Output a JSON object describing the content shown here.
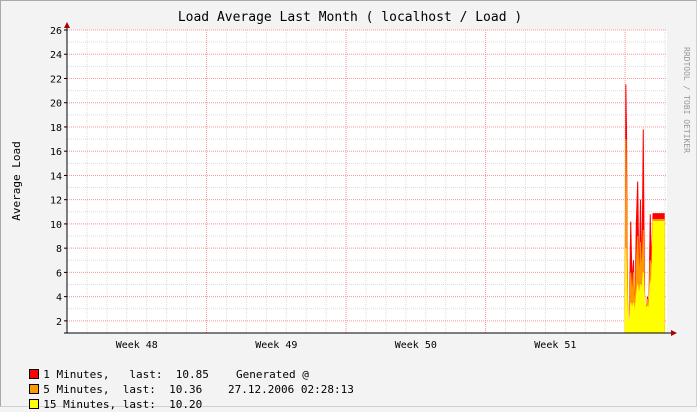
{
  "chart_data": {
    "type": "area",
    "title": "Load Average Last Month ( localhost / Load )",
    "ylabel": "Average Load",
    "watermark": "RRDTOOL / TOBI OETIKER",
    "ylim": [
      1,
      26
    ],
    "yticks": [
      2,
      4,
      6,
      8,
      10,
      12,
      14,
      16,
      18,
      20,
      22,
      24,
      26
    ],
    "xrange": [
      0,
      4.3
    ],
    "xticks": [
      {
        "pos": 0.5,
        "label": "Week 48"
      },
      {
        "pos": 1.5,
        "label": "Week 49"
      },
      {
        "pos": 2.5,
        "label": "Week 50"
      },
      {
        "pos": 3.5,
        "label": "Week 51"
      }
    ],
    "week_boundaries": [
      1,
      2,
      3,
      4
    ],
    "grid": true,
    "colors": {
      "one_minute": "#ff0000",
      "five_minutes": "#ff9900",
      "fifteen_minutes": "#ffff00",
      "axis": "#000000",
      "major_grid": "#ff9999",
      "minor_grid": "#dddddd",
      "plot_bg": "#ffffff"
    },
    "series": [
      {
        "name": "1 Minutes",
        "color": "#ff0000",
        "x": [
          4.0,
          4.005,
          4.01,
          4.015,
          4.02,
          4.03,
          4.04,
          4.05,
          4.06,
          4.07,
          4.08,
          4.09,
          4.1,
          4.11,
          4.12,
          4.13,
          4.135,
          4.14,
          4.15,
          4.16,
          4.17,
          4.18,
          4.19,
          4.2,
          4.21,
          4.22,
          4.23,
          4.24,
          4.25,
          4.26,
          4.27,
          4.28
        ],
        "values": [
          1.0,
          21.5,
          17.5,
          6.0,
          1.5,
          1.2,
          10.2,
          5.0,
          7.0,
          2.0,
          10.0,
          13.5,
          4.5,
          12.0,
          5.0,
          17.8,
          9.0,
          3.0,
          2.5,
          4.0,
          2.8,
          10.8,
          6.0,
          10.85,
          10.85,
          10.85,
          10.85,
          10.85,
          10.85,
          10.85,
          10.85,
          10.85
        ]
      },
      {
        "name": "5 Minutes",
        "color": "#ff9900",
        "x": [
          4.0,
          4.005,
          4.01,
          4.015,
          4.02,
          4.03,
          4.04,
          4.05,
          4.06,
          4.07,
          4.08,
          4.09,
          4.1,
          4.11,
          4.12,
          4.13,
          4.135,
          4.14,
          4.15,
          4.16,
          4.17,
          4.18,
          4.19,
          4.2,
          4.21,
          4.22,
          4.23,
          4.24,
          4.25,
          4.26,
          4.27,
          4.28
        ],
        "values": [
          1.0,
          17.0,
          12.0,
          5.0,
          1.8,
          1.5,
          6.0,
          4.0,
          6.0,
          2.5,
          6.5,
          9.0,
          5.0,
          8.5,
          5.5,
          9.5,
          6.0,
          3.5,
          3.0,
          3.8,
          3.0,
          7.0,
          6.0,
          10.36,
          10.36,
          10.36,
          10.36,
          10.36,
          10.36,
          10.36,
          10.36,
          10.36
        ]
      },
      {
        "name": "15 Minutes",
        "color": "#ffff00",
        "x": [
          4.0,
          4.005,
          4.01,
          4.015,
          4.02,
          4.03,
          4.04,
          4.05,
          4.06,
          4.07,
          4.08,
          4.09,
          4.1,
          4.11,
          4.12,
          4.13,
          4.135,
          4.14,
          4.15,
          4.16,
          4.17,
          4.18,
          4.19,
          4.2,
          4.21,
          4.22,
          4.23,
          4.24,
          4.25,
          4.26,
          4.27,
          4.28
        ],
        "values": [
          1.0,
          8.0,
          6.0,
          3.0,
          2.0,
          1.8,
          3.5,
          3.0,
          3.5,
          2.5,
          4.0,
          5.0,
          4.0,
          5.0,
          4.5,
          6.0,
          4.5,
          3.5,
          3.0,
          3.2,
          3.0,
          5.0,
          5.5,
          10.2,
          10.2,
          10.2,
          10.2,
          10.2,
          10.2,
          10.2,
          10.2,
          10.2
        ]
      }
    ]
  },
  "legend": [
    {
      "color": "#ff0000",
      "text": "1 Minutes,   last:  10.85"
    },
    {
      "color": "#ff9900",
      "text": "5 Minutes,  last:  10.36"
    },
    {
      "color": "#ffff00",
      "text": "15 Minutes, last:  10.20"
    }
  ],
  "generated": {
    "label": "Generated @",
    "timestamp": "27.12.2006 02:28:13"
  }
}
